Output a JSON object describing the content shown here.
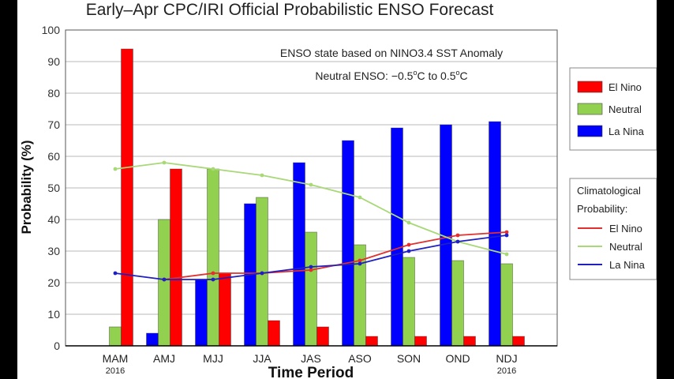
{
  "chart_data": {
    "type": "bar",
    "title": "Early–Apr CPC/IRI Official Probabilistic ENSO Forecast",
    "xlabel": "Time Period",
    "ylabel": "Probability (%)",
    "ylim": [
      0,
      100
    ],
    "yticks": [
      0,
      10,
      20,
      30,
      40,
      50,
      60,
      70,
      80,
      90,
      100
    ],
    "grid": true,
    "categories": [
      "MAM",
      "AMJ",
      "MJJ",
      "JJA",
      "JAS",
      "ASO",
      "SON",
      "OND",
      "NDJ"
    ],
    "year_labels": [
      {
        "category": "MAM",
        "text": "2016"
      },
      {
        "category": "NDJ",
        "text": "2016"
      }
    ],
    "series": [
      {
        "name": "La Nina",
        "color": "#0000ff",
        "values": [
          0,
          4,
          21,
          45,
          58,
          65,
          69,
          70,
          71
        ]
      },
      {
        "name": "Neutral",
        "color": "#92d050",
        "values": [
          6,
          40,
          56,
          47,
          36,
          32,
          28,
          27,
          26
        ]
      },
      {
        "name": "El Nino",
        "color": "#ff0000",
        "values": [
          94,
          56,
          23,
          8,
          6,
          3,
          3,
          3,
          3
        ]
      }
    ],
    "climatology": [
      {
        "name": "El Nino",
        "color": "#e03030",
        "values": [
          null,
          21,
          23,
          23,
          24,
          27,
          32,
          35,
          36
        ]
      },
      {
        "name": "Neutral",
        "color": "#a8d878",
        "values": [
          56,
          58,
          56,
          54,
          51,
          47,
          39,
          33,
          29
        ]
      },
      {
        "name": "La Nina",
        "color": "#2020c0",
        "values": [
          23,
          21,
          21,
          23,
          25,
          26,
          30,
          33,
          35
        ]
      }
    ],
    "annotations": {
      "line1": "ENSO state based on NINO3.4 SST Anomaly",
      "line2_prefix": "Neutral ENSO: −0.5",
      "line2_deg1": "o",
      "line2_mid": "C to 0.5",
      "line2_deg2": "o",
      "line2_suffix": "C"
    },
    "legend": {
      "placement": "right",
      "items": [
        "El Nino",
        "Neutral",
        "La Nina"
      ],
      "clim_title_1": "Climatological",
      "clim_title_2": "Probability:",
      "clim_items": [
        "El Nino",
        "Neutral",
        "La Nina"
      ]
    }
  }
}
